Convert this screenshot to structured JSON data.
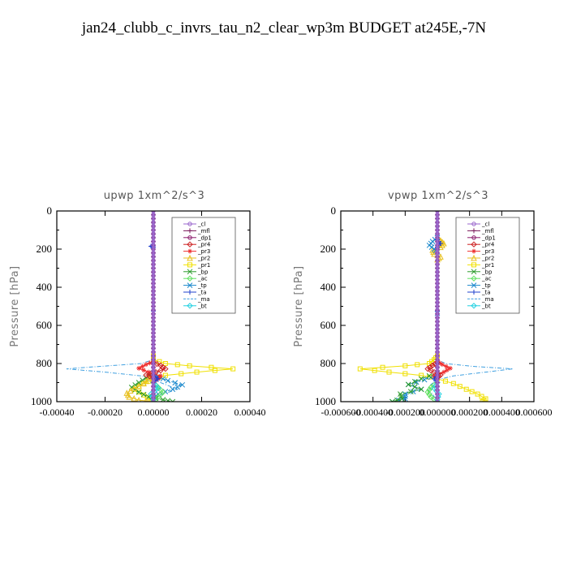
{
  "page": {
    "title": "jan24_clubb_c_invrs_tau_n2_clear_wp3m  BUDGET at245E,-7N"
  },
  "legend_entries": [
    {
      "name": "_cl",
      "color": "#9966cc",
      "marker": "circle"
    },
    {
      "name": "_mfl",
      "color": "#7a1a5a",
      "marker": "plus"
    },
    {
      "name": "_dp1",
      "color": "#8b1a6b",
      "marker": "circle"
    },
    {
      "name": "_pr4",
      "color": "#cc2020",
      "marker": "diamond"
    },
    {
      "name": "_pr3",
      "color": "#ee3030",
      "marker": "star"
    },
    {
      "name": "_pr2",
      "color": "#e8c020",
      "marker": "triangle"
    },
    {
      "name": "_pr1",
      "color": "#f0e000",
      "marker": "square"
    },
    {
      "name": "_bp",
      "color": "#2a9a2a",
      "marker": "x"
    },
    {
      "name": "_ac",
      "color": "#60e060",
      "marker": "diamond"
    },
    {
      "name": "_tp",
      "color": "#1a88cc",
      "marker": "x"
    },
    {
      "name": "_ta",
      "color": "#2040cc",
      "marker": "plus"
    },
    {
      "name": "_ma",
      "color": "#40a0e0",
      "marker": "none"
    },
    {
      "name": "_bt",
      "color": "#20d0e0",
      "marker": "diamond"
    }
  ],
  "chart_data": [
    {
      "type": "line",
      "title": "upwp   1xm^2/s^3",
      "ylabel": "Pressure  [hPa]",
      "xlim": [
        -0.0004,
        0.0004
      ],
      "ylim": [
        1000,
        0
      ],
      "x_ticks": [
        "-0.00040",
        "-0.00020",
        "0.00000",
        "0.00020",
        "0.00040"
      ],
      "x_tick_values": [
        -0.0004,
        -0.0002,
        0.0,
        0.0002,
        0.0004
      ],
      "y_ticks": [
        "0",
        "200",
        "400",
        "600",
        "800",
        "1000"
      ],
      "y_tick_values": [
        0,
        200,
        400,
        600,
        800,
        1000
      ],
      "legend_position": "top-right",
      "series": [
        {
          "name": "_ma",
          "color": "#40a0e0",
          "marker": "none",
          "points": [
            [
              0,
              760
            ],
            [
              0,
              780
            ],
            [
              -5e-05,
              800
            ],
            [
              -0.00022,
              815
            ],
            [
              -0.00036,
              828
            ],
            [
              -0.0002,
              845
            ],
            [
              -5e-05,
              865
            ],
            [
              0,
              885
            ],
            [
              5e-05,
              910
            ],
            [
              0.0001,
              935
            ],
            [
              4e-05,
              960
            ],
            [
              -2e-05,
              985
            ],
            [
              0,
              1000
            ]
          ]
        },
        {
          "name": "_pr1",
          "color": "#f0e000",
          "marker": "square",
          "points": [
            [
              0,
              760
            ],
            [
              0,
              780
            ],
            [
              5e-05,
              800
            ],
            [
              0.00015,
              812
            ],
            [
              0.00033,
              828
            ],
            [
              0.00018,
              845
            ],
            [
              5e-05,
              862
            ],
            [
              0,
              880
            ],
            [
              -4e-05,
              905
            ],
            [
              -8e-05,
              935
            ],
            [
              -4e-05,
              965
            ],
            [
              -1e-05,
              990
            ],
            [
              0,
              1000
            ]
          ]
        },
        {
          "name": "_tp",
          "color": "#1a88cc",
          "marker": "x",
          "points": [
            [
              0,
              850
            ],
            [
              2e-05,
              870
            ],
            [
              6e-05,
              890
            ],
            [
              0.00012,
              912
            ],
            [
              8e-05,
              935
            ],
            [
              2e-05,
              960
            ],
            [
              0,
              980
            ],
            [
              0,
              1000
            ]
          ]
        },
        {
          "name": "_bp",
          "color": "#2a9a2a",
          "marker": "x",
          "points": [
            [
              0,
              850
            ],
            [
              -3e-05,
              875
            ],
            [
              -6e-05,
              900
            ],
            [
              -9e-05,
              925
            ],
            [
              -6e-05,
              950
            ],
            [
              -2e-05,
              975
            ],
            [
              4e-05,
              990
            ],
            [
              8e-05,
              1000
            ]
          ]
        },
        {
          "name": "_pr2",
          "color": "#e8c020",
          "marker": "triangle",
          "points": [
            [
              0,
              860
            ],
            [
              -2e-05,
              880
            ],
            [
              -4e-05,
              905
            ],
            [
              -8e-05,
              930
            ],
            [
              -0.00011,
              955
            ],
            [
              -0.0001,
              975
            ],
            [
              -6e-05,
              992
            ],
            [
              0,
              1000
            ]
          ]
        },
        {
          "name": "_pr3",
          "color": "#ee3030",
          "marker": "star",
          "points": [
            [
              0,
              790
            ],
            [
              -3e-05,
              805
            ],
            [
              -6e-05,
              825
            ],
            [
              -2e-05,
              845
            ],
            [
              3e-05,
              865
            ],
            [
              2e-05,
              880
            ],
            [
              0,
              895
            ]
          ]
        },
        {
          "name": "_pr4",
          "color": "#cc2020",
          "marker": "diamond",
          "points": [
            [
              0,
              795
            ],
            [
              3e-05,
              810
            ],
            [
              5e-05,
              828
            ],
            [
              1e-05,
              845
            ],
            [
              -3e-05,
              860
            ],
            [
              0,
              875
            ]
          ]
        },
        {
          "name": "_ac",
          "color": "#60e060",
          "marker": "diamond",
          "points": [
            [
              0,
              900
            ],
            [
              2e-05,
              925
            ],
            [
              4e-05,
              950
            ],
            [
              2e-05,
              975
            ],
            [
              0,
              1000
            ]
          ]
        },
        {
          "name": "_dp1",
          "color": "#8b1a6b",
          "marker": "circle",
          "points": [
            [
              0,
              0
            ],
            [
              0,
              1000
            ]
          ]
        },
        {
          "name": "_bt",
          "color": "#20d0e0",
          "marker": "diamond",
          "points": [
            [
              0,
              900
            ],
            [
              2e-05,
              930
            ],
            [
              -1e-05,
              960
            ],
            [
              0,
              990
            ]
          ]
        },
        {
          "name": "_ta",
          "color": "#2040cc",
          "marker": "plus",
          "points": [
            [
              0,
              180
            ],
            [
              -1e-05,
              185
            ],
            [
              0,
              190
            ],
            [
              0,
              860
            ],
            [
              2e-05,
              880
            ],
            [
              0,
              900
            ]
          ]
        },
        {
          "name": "_mfl",
          "color": "#7a1a5a",
          "marker": "plus",
          "points": [
            [
              0,
              0
            ],
            [
              0,
              1000
            ]
          ]
        },
        {
          "name": "_cl",
          "color": "#9966cc",
          "marker": "circle",
          "points": [
            [
              0,
              0
            ],
            [
              0,
              1000
            ]
          ]
        }
      ]
    },
    {
      "type": "line",
      "title": "vpwp   1xm^2/s^3",
      "ylabel": "Pressure  [hPa]",
      "xlim": [
        -0.0006,
        0.0006
      ],
      "ylim": [
        1000,
        0
      ],
      "x_ticks": [
        "-0.000600",
        "-0.000400",
        "-0.000200",
        "0.000000",
        "0.000200",
        "0.000400",
        "0.000600"
      ],
      "x_tick_values": [
        -0.0006,
        -0.0004,
        -0.0002,
        0.0,
        0.0002,
        0.0004,
        0.0006
      ],
      "y_ticks": [
        "0",
        "200",
        "400",
        "600",
        "800",
        "1000"
      ],
      "y_tick_values": [
        0,
        200,
        400,
        600,
        800,
        1000
      ],
      "legend_position": "top-right",
      "series": [
        {
          "name": "_ma",
          "color": "#40a0e0",
          "marker": "none",
          "points": [
            [
              0,
              760
            ],
            [
              0,
              780
            ],
            [
              5e-05,
              800
            ],
            [
              0.00022,
              815
            ],
            [
              0.00047,
              828
            ],
            [
              0.0003,
              845
            ],
            [
              0.0001,
              865
            ],
            [
              0,
              885
            ],
            [
              -4e-05,
              910
            ],
            [
              -6e-05,
              935
            ],
            [
              -3e-05,
              960
            ],
            [
              0,
              1000
            ]
          ]
        },
        {
          "name": "_pr1",
          "color": "#f0e000",
          "marker": "square",
          "points": [
            [
              0,
              760
            ],
            [
              -2e-05,
              780
            ],
            [
              -5e-05,
              800
            ],
            [
              -0.0002,
              812
            ],
            [
              -0.00048,
              828
            ],
            [
              -0.0003,
              845
            ],
            [
              -0.0001,
              862
            ],
            [
              0,
              880
            ],
            [
              0.0001,
              905
            ],
            [
              0.00018,
              935
            ],
            [
              0.00025,
              960
            ],
            [
              0.0003,
              985
            ],
            [
              0.00028,
              1000
            ]
          ]
        },
        {
          "name": "_pr2",
          "color": "#e8c020",
          "marker": "triangle",
          "points": [
            [
              0,
              140
            ],
            [
              2e-05,
              155
            ],
            [
              4e-05,
              170
            ],
            [
              2e-05,
              190
            ],
            [
              -3e-05,
              205
            ],
            [
              -2e-05,
              225
            ],
            [
              2e-05,
              240
            ],
            [
              0,
              255
            ]
          ]
        },
        {
          "name": "_tp",
          "color": "#1a88cc",
          "marker": "x",
          "points": [
            [
              0,
              140
            ],
            [
              -3e-05,
              160
            ],
            [
              -5e-05,
              180
            ],
            [
              -2e-05,
              200
            ],
            [
              0,
              215
            ],
            [
              0,
              860
            ],
            [
              -8e-05,
              885
            ],
            [
              -0.00018,
              910
            ],
            [
              -0.0001,
              935
            ],
            [
              -0.0002,
              960
            ],
            [
              -0.0002,
              985
            ],
            [
              -0.00028,
              1000
            ]
          ]
        },
        {
          "name": "_bp",
          "color": "#2a9a2a",
          "marker": "x",
          "points": [
            [
              0,
              850
            ],
            [
              -0.0001,
              880
            ],
            [
              -0.00018,
              910
            ],
            [
              -0.0001,
              935
            ],
            [
              -0.00023,
              960
            ],
            [
              -0.00022,
              985
            ],
            [
              -0.00028,
              1000
            ]
          ]
        },
        {
          "name": "_pr3",
          "color": "#ee3030",
          "marker": "star",
          "points": [
            [
              0,
              790
            ],
            [
              3e-05,
              805
            ],
            [
              8e-05,
              825
            ],
            [
              4e-05,
              845
            ],
            [
              -2e-05,
              865
            ],
            [
              0,
              880
            ]
          ]
        },
        {
          "name": "_pr4",
          "color": "#cc2020",
          "marker": "diamond",
          "points": [
            [
              0,
              795
            ],
            [
              -3e-05,
              810
            ],
            [
              -6e-05,
              828
            ],
            [
              -2e-05,
              845
            ],
            [
              2e-05,
              860
            ],
            [
              0,
              875
            ]
          ]
        },
        {
          "name": "_ac",
          "color": "#60e060",
          "marker": "diamond",
          "points": [
            [
              0,
              900
            ],
            [
              -4e-05,
              925
            ],
            [
              -6e-05,
              950
            ],
            [
              -4e-05,
              975
            ],
            [
              0,
              1000
            ]
          ]
        },
        {
          "name": "_dp1",
          "color": "#8b1a6b",
          "marker": "circle",
          "points": [
            [
              0,
              0
            ],
            [
              0,
              1000
            ]
          ]
        },
        {
          "name": "_bt",
          "color": "#20d0e0",
          "marker": "diamond",
          "points": [
            [
              0,
              900
            ],
            [
              -2e-05,
              930
            ],
            [
              1e-05,
              960
            ],
            [
              0,
              990
            ]
          ]
        },
        {
          "name": "_ta",
          "color": "#2040cc",
          "marker": "plus",
          "points": [
            [
              0,
              150
            ],
            [
              2e-05,
              170
            ],
            [
              0,
              190
            ],
            [
              0,
              860
            ],
            [
              -2e-05,
              880
            ],
            [
              0,
              900
            ]
          ]
        },
        {
          "name": "_mfl",
          "color": "#7a1a5a",
          "marker": "plus",
          "points": [
            [
              0,
              0
            ],
            [
              0,
              1000
            ]
          ]
        },
        {
          "name": "_cl",
          "color": "#9966cc",
          "marker": "circle",
          "points": [
            [
              0,
              0
            ],
            [
              0,
              1000
            ]
          ]
        }
      ]
    }
  ]
}
